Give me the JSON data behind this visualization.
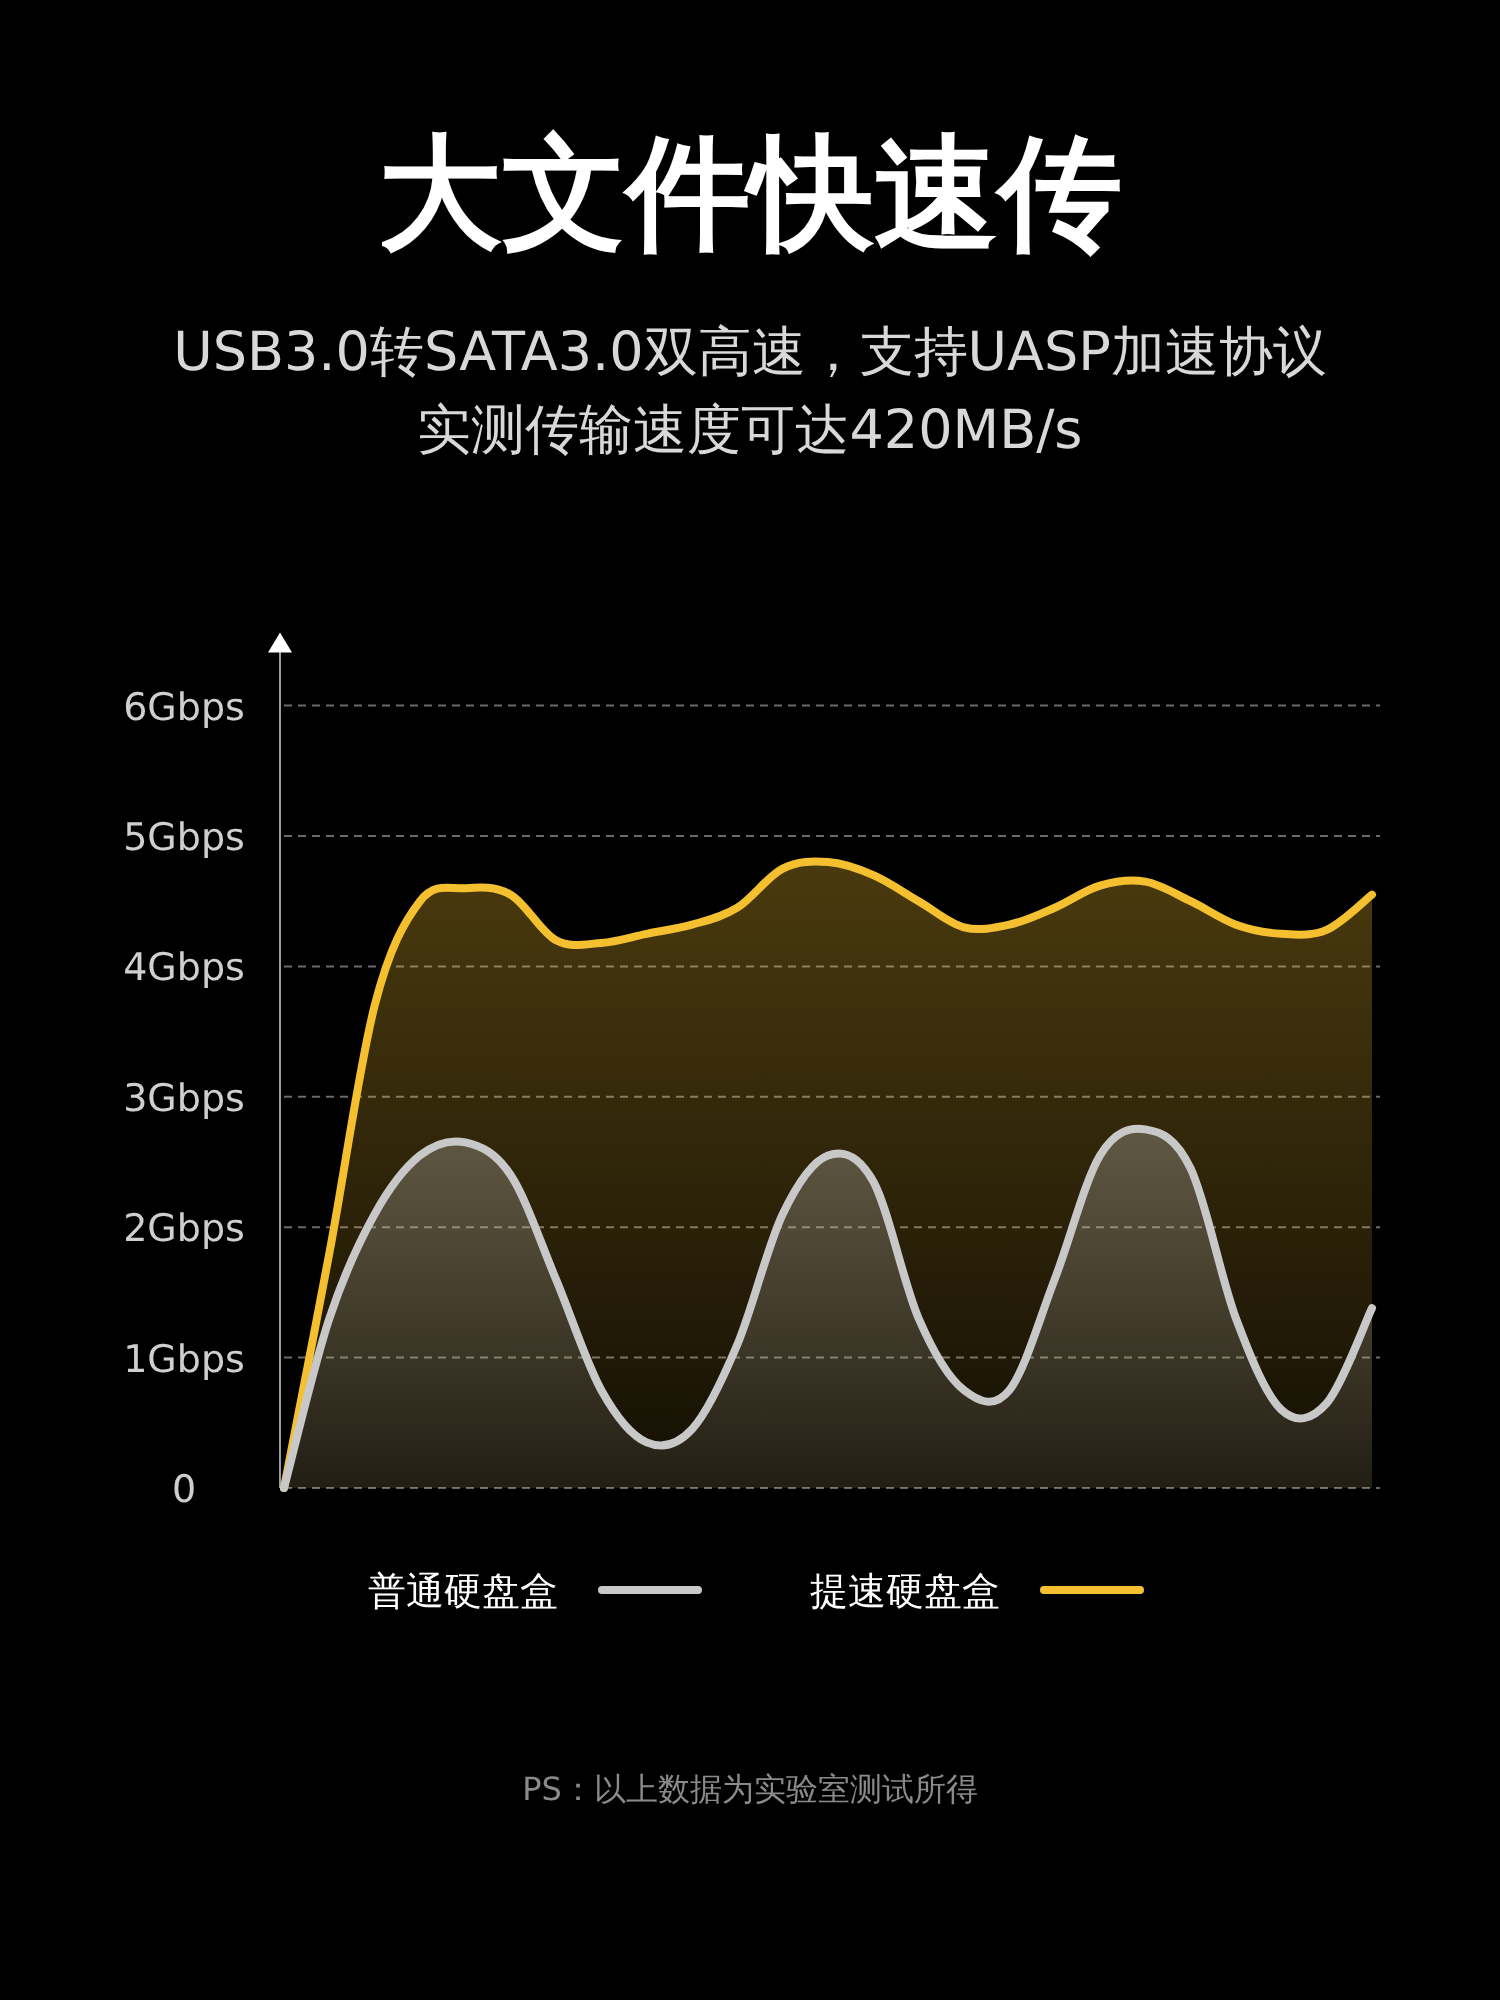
{
  "chart_data": {
    "type": "area",
    "title": "大文件快速传",
    "subtitle": "USB3.0转SATA3.0双高速，支持UASP加速协议实测传输速度可达420MB/s",
    "categories": [
      null,
      null,
      null,
      null,
      null,
      null,
      null,
      null,
      null,
      null,
      null,
      null,
      null,
      null,
      null,
      null,
      null,
      null,
      null,
      null,
      null,
      null,
      null,
      null,
      null
    ],
    "series": [
      {
        "name": "普通硬盘盒",
        "color": "#c8c8c8",
        "values": [
          0,
          1.3,
          2.1,
          2.55,
          2.65,
          2.4,
          1.6,
          0.75,
          0.35,
          0.45,
          1.1,
          2.1,
          2.55,
          2.35,
          1.3,
          0.75,
          0.75,
          1.6,
          2.55,
          2.75,
          2.45,
          1.3,
          0.6,
          0.65,
          1.38
        ]
      },
      {
        "name": "提速硬盘盒",
        "color": "#f5c02f",
        "values": [
          0,
          1.8,
          3.7,
          4.5,
          4.6,
          4.55,
          4.2,
          4.18,
          4.25,
          4.32,
          4.45,
          4.75,
          4.8,
          4.7,
          4.5,
          4.3,
          4.32,
          4.45,
          4.62,
          4.65,
          4.5,
          4.32,
          4.25,
          4.28,
          4.55
        ]
      }
    ],
    "ylim": [
      0,
      6.5
    ],
    "yticks": [
      {
        "value": 0,
        "label": "0"
      },
      {
        "value": 1,
        "label": "1Gbps"
      },
      {
        "value": 2,
        "label": "2Gbps"
      },
      {
        "value": 3,
        "label": "3Gbps"
      },
      {
        "value": 4,
        "label": "4Gbps"
      },
      {
        "value": 5,
        "label": "5Gbps"
      },
      {
        "value": 6,
        "label": "6Gbps"
      }
    ],
    "grid": "y",
    "legend": "bottom",
    "marker": "none",
    "line_style": "solid",
    "annotations": [
      "PS：以上数据为实验室测试所得"
    ]
  }
}
